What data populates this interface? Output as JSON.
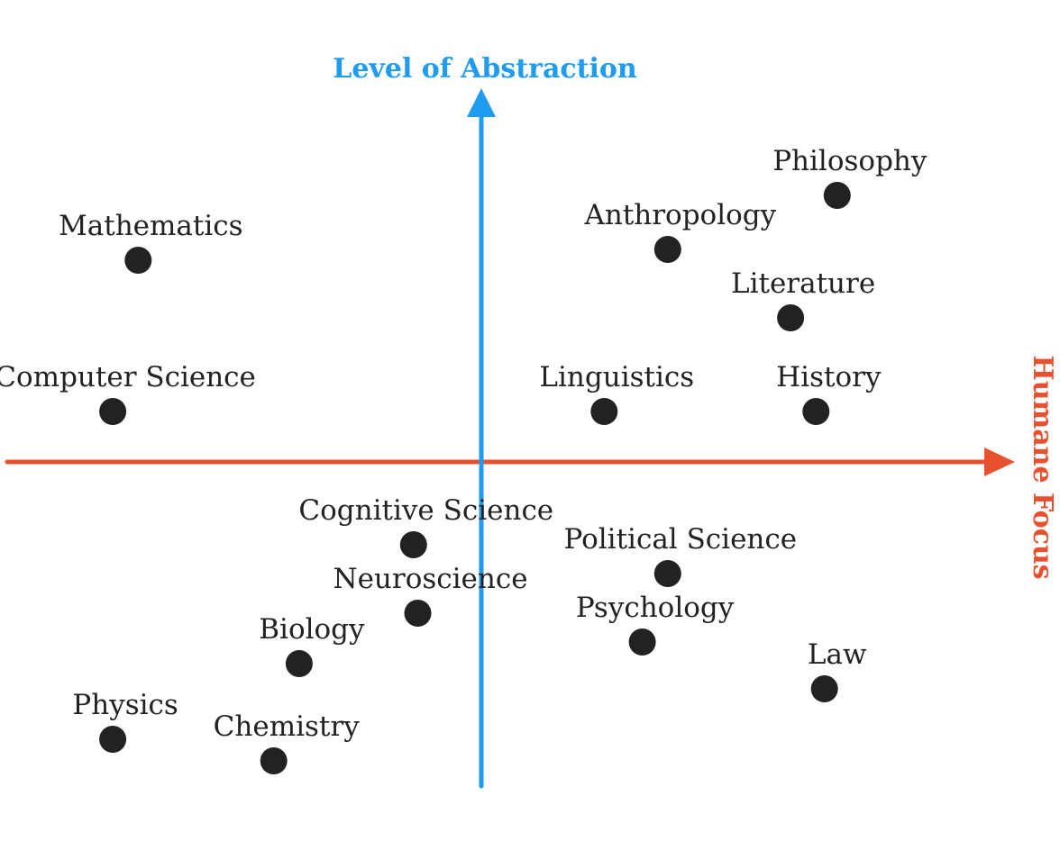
{
  "chart_data": {
    "type": "scatter",
    "title": "",
    "xlabel": "Humane Focus",
    "ylabel": "Level of Abstraction",
    "xlim": [
      -10,
      10
    ],
    "ylim": [
      -10,
      10
    ],
    "grid": false,
    "legend": "none",
    "colors": {
      "x_axis": "#e8512f",
      "y_axis": "#1f9bef",
      "points": "#222222"
    },
    "points": [
      {
        "label": "Mathematics",
        "x": -8.1,
        "y": 5.6
      },
      {
        "label": "Computer Science",
        "x": -8.7,
        "y": 1.4
      },
      {
        "label": "Philosophy",
        "x": 8.4,
        "y": 7.4
      },
      {
        "label": "Anthropology",
        "x": 4.4,
        "y": 5.9
      },
      {
        "label": "Literature",
        "x": 7.3,
        "y": 4.0
      },
      {
        "label": "Linguistics",
        "x": 2.9,
        "y": 1.4
      },
      {
        "label": "History",
        "x": 7.9,
        "y": 1.4
      },
      {
        "label": "Cognitive Science",
        "x": -1.6,
        "y": -2.3
      },
      {
        "label": "Neuroscience",
        "x": -1.5,
        "y": -4.2
      },
      {
        "label": "Political Science",
        "x": 4.4,
        "y": -3.1
      },
      {
        "label": "Psychology",
        "x": 3.8,
        "y": -5.0
      },
      {
        "label": "Biology",
        "x": -4.3,
        "y": -5.6
      },
      {
        "label": "Law",
        "x": 8.1,
        "y": -6.3
      },
      {
        "label": "Physics",
        "x": -8.7,
        "y": -7.7
      },
      {
        "label": "Chemistry",
        "x": -4.9,
        "y": -8.3
      }
    ]
  }
}
